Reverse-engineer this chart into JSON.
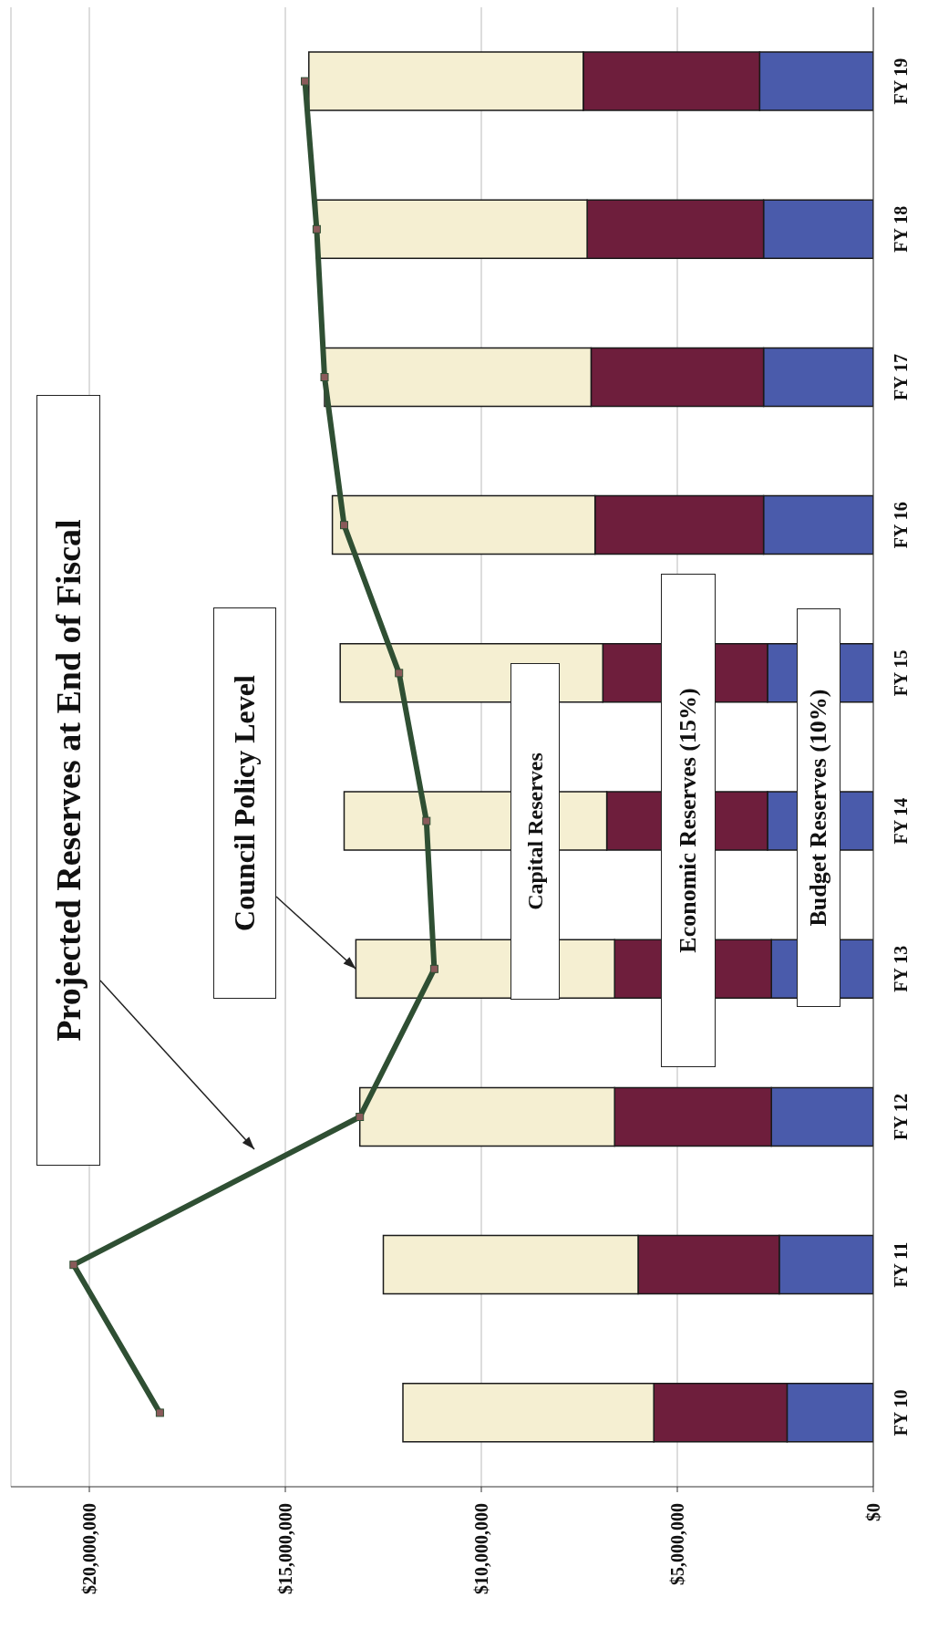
{
  "chart_data": {
    "type": "bar",
    "stacked": true,
    "orientation": "horizontal",
    "categories": [
      "FY 19",
      "FY 18",
      "FY 17",
      "FY 16",
      "FY 15",
      "FY 14",
      "FY 13",
      "FY 12",
      "FY 11",
      "FY 10"
    ],
    "series": [
      {
        "name": "Budget Reserves (10%)",
        "color": "#4a5bab",
        "values": [
          2900000,
          2800000,
          2800000,
          2800000,
          2700000,
          2700000,
          2600000,
          2600000,
          2400000,
          2200000
        ]
      },
      {
        "name": "Economic Reserves (15%)",
        "color": "#6e1e3c",
        "values": [
          4500000,
          4500000,
          4400000,
          4300000,
          4200000,
          4100000,
          4000000,
          4000000,
          3600000,
          3400000
        ]
      },
      {
        "name": "Capital Reserves",
        "color": "#f5efd2",
        "values": [
          7000000,
          6900000,
          6800000,
          6700000,
          6700000,
          6700000,
          6600000,
          6500000,
          6500000,
          6400000
        ]
      },
      {
        "type": "line",
        "color": "#2f4f33",
        "values": [
          14500000,
          14200000,
          14000000,
          13500000,
          12100000,
          11400000,
          11200000,
          13100000,
          20400000,
          18200000
        ]
      }
    ],
    "xlim": [
      22000000,
      0
    ],
    "xticks": [
      {
        "value": 0,
        "label": "$0"
      },
      {
        "value": 5000000,
        "label": "$5,000,000"
      },
      {
        "value": 10000000,
        "label": "$10,000,000"
      },
      {
        "value": 15000000,
        "label": "$15,000,000"
      },
      {
        "value": 20000000,
        "label": "$20,000,000"
      }
    ],
    "grid": "x",
    "marker": "square",
    "annotations": [
      "Projected Reserves at End of Fiscal",
      {
        "text": "Council Policy Level",
        "x": 13200000,
        "y": "FY 13"
      }
    ]
  }
}
